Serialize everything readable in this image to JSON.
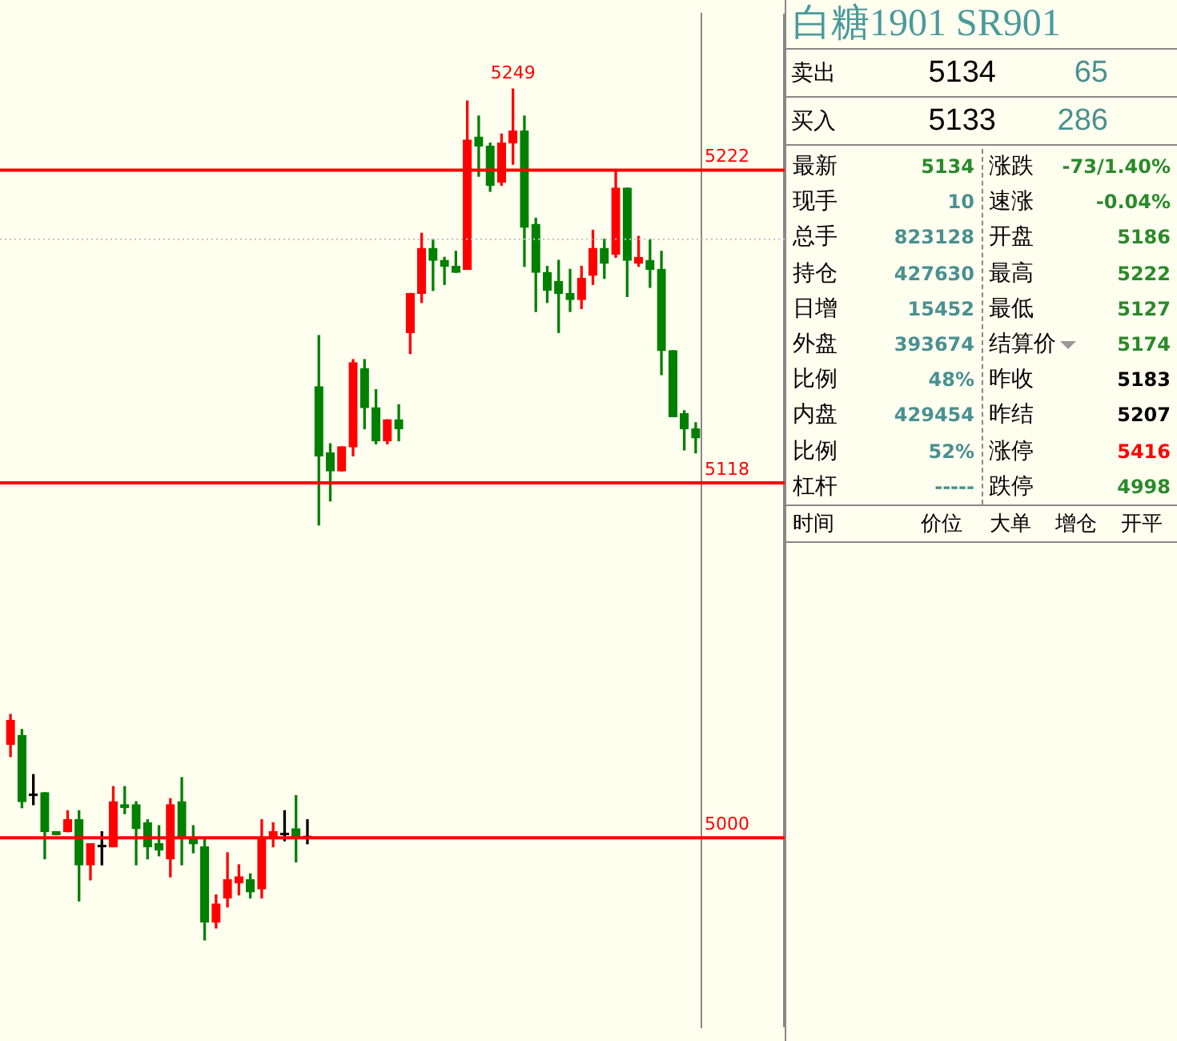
{
  "chart_data": [
    {
      "type": "candlestick",
      "categories": [
        null,
        null,
        null,
        null,
        null,
        null,
        null,
        null,
        null,
        null,
        null,
        null,
        null,
        null,
        null,
        null,
        null,
        null,
        null,
        null,
        null,
        null,
        null,
        null,
        null,
        null,
        null,
        null,
        null,
        null,
        null,
        null,
        null,
        null,
        null,
        null,
        null,
        null,
        null,
        null,
        null,
        null,
        null,
        null,
        null,
        null,
        null,
        null,
        null,
        null,
        null,
        null,
        null,
        null,
        null,
        null,
        null,
        null,
        null,
        null,
        null
      ],
      "ohlc": [
        [
          5031,
          5041,
          5027,
          5039
        ],
        [
          5034,
          5036,
          5010,
          5012
        ],
        [
          5014,
          5021,
          5011,
          5014
        ],
        [
          5015,
          5015,
          4993,
          5002
        ],
        [
          5002,
          5002,
          5001,
          5001
        ],
        [
          5002,
          5009,
          5002,
          5006
        ],
        [
          5006,
          5009,
          4979,
          4991
        ],
        [
          4991,
          4998,
          4986,
          4998
        ],
        [
          4997,
          5002,
          4991,
          4997
        ],
        [
          4997,
          5017,
          4997,
          5012
        ],
        [
          5011,
          5017,
          5008,
          5010
        ],
        [
          5011,
          5012,
          4991,
          5003
        ],
        [
          5005,
          5006,
          4993,
          4997
        ],
        [
          4998,
          5004,
          4994,
          4996
        ],
        [
          4993,
          5013,
          4987,
          5011
        ],
        [
          5012,
          5020,
          4991,
          5000
        ],
        [
          5000,
          5004,
          4995,
          4998
        ],
        [
          4997,
          5000,
          4966,
          4972
        ],
        [
          4972,
          4981,
          4970,
          4978
        ],
        [
          4980,
          4995,
          4977,
          4986
        ],
        [
          4985,
          4991,
          4981,
          4987
        ],
        [
          4986,
          4988,
          4980,
          4982
        ],
        [
          4983,
          5006,
          4980,
          5000
        ],
        [
          5000,
          5005,
          4997,
          5002
        ],
        [
          5001,
          5009,
          4999,
          5001
        ],
        [
          5003,
          5014,
          4992,
          5000
        ],
        [
          5000,
          5006,
          4998,
          5000
        ],
        [
          5150,
          5167,
          5104,
          5127
        ],
        [
          5128,
          5131,
          5112,
          5122
        ],
        [
          5122,
          5130,
          5122,
          5130
        ],
        [
          5130,
          5159,
          5127,
          5158
        ],
        [
          5156,
          5159,
          5136,
          5143
        ],
        [
          5143,
          5149,
          5131,
          5132
        ],
        [
          5132,
          5139,
          5131,
          5139
        ],
        [
          5139,
          5144,
          5132,
          5136
        ],
        [
          5168,
          5181,
          5161,
          5181
        ],
        [
          5181,
          5201,
          5178,
          5196
        ],
        [
          5196,
          5199,
          5182,
          5192
        ],
        [
          5192,
          5193,
          5184,
          5190
        ],
        [
          5190,
          5195,
          5188,
          5188
        ],
        [
          5189,
          5245,
          5189,
          5232
        ],
        [
          5233,
          5240,
          5220,
          5230
        ],
        [
          5230,
          5231,
          5215,
          5217
        ],
        [
          5218,
          5234,
          5217,
          5231
        ],
        [
          5231,
          5249,
          5224,
          5235
        ],
        [
          5235,
          5240,
          5190,
          5203
        ],
        [
          5204,
          5206,
          5175,
          5188
        ],
        [
          5188,
          5190,
          5178,
          5182
        ],
        [
          5185,
          5192,
          5168,
          5181
        ],
        [
          5181,
          5189,
          5175,
          5179
        ],
        [
          5179,
          5190,
          5176,
          5186
        ],
        [
          5187,
          5202,
          5184,
          5196
        ],
        [
          5196,
          5199,
          5186,
          5191
        ],
        [
          5194,
          5222,
          5193,
          5216
        ],
        [
          5216,
          5216,
          5180,
          5192
        ],
        [
          5191,
          5200,
          5190,
          5193
        ],
        [
          5192,
          5199,
          5183,
          5189
        ],
        [
          5189,
          5195,
          5154,
          5162
        ],
        [
          5162,
          5162,
          5140,
          5140
        ],
        [
          5141,
          5142,
          5129,
          5136
        ],
        [
          5136,
          5138,
          5128,
          5133
        ]
      ],
      "colors": [
        "#ff0000",
        "#008000",
        "#000000",
        "#008000",
        "#008000",
        "#ff0000",
        "#008000",
        "#ff0000",
        "#000000",
        "#ff0000",
        "#008000",
        "#008000",
        "#008000",
        "#008000",
        "#ff0000",
        "#008000",
        "#008000",
        "#008000",
        "#ff0000",
        "#ff0000",
        "#ff0000",
        "#008000",
        "#ff0000",
        "#ff0000",
        "#000000",
        "#008000",
        "#000000",
        "#008000",
        "#008000",
        "#ff0000",
        "#ff0000",
        "#008000",
        "#008000",
        "#ff0000",
        "#008000",
        "#ff0000",
        "#ff0000",
        "#008000",
        "#008000",
        "#008000",
        "#ff0000",
        "#008000",
        "#008000",
        "#ff0000",
        "#ff0000",
        "#008000",
        "#008000",
        "#008000",
        "#008000",
        "#008000",
        "#ff0000",
        "#ff0000",
        "#008000",
        "#ff0000",
        "#008000",
        "#ff0000",
        "#008000",
        "#008000",
        "#008000",
        "#008000",
        "#008000"
      ],
      "ylim": [
        4937,
        5274
      ],
      "yticks": [
        5000,
        5118,
        5222
      ],
      "tick_labels": "y",
      "grid": false,
      "legend": false,
      "ref_lines": [
        {
          "axis": "y",
          "value": 5222,
          "color": "#ff0000"
        },
        {
          "axis": "y",
          "value": 5118,
          "color": "#ff0000"
        },
        {
          "axis": "y",
          "value": 5000,
          "color": "#ff0000"
        },
        {
          "axis": "y",
          "value": 5199,
          "color": "#c0c0c0",
          "line_style": "dotted"
        }
      ],
      "annotations": [
        {
          "text": "5249",
          "y": 5249
        }
      ]
    },
    {
      "type": "other",
      "title": "白糖1901  SR901",
      "annotations": [
        "卖出",
        "5134",
        "65",
        "买入",
        "5133",
        "286",
        "最新",
        "5134",
        "涨跌",
        "-73/1.40%",
        "现手",
        "10",
        "速涨",
        "-0.04%",
        "总手",
        "823128",
        "开盘",
        "5186",
        "持仓",
        "427630",
        "最高",
        "5222",
        "日增",
        "15452",
        "最低",
        "5127",
        "外盘",
        "393674",
        "结算价",
        "5174",
        "比例",
        "48%",
        "昨收",
        "5183",
        "内盘",
        "429454",
        "昨结",
        "5207",
        "比例",
        "52%",
        "涨停",
        "5416",
        "杠杆",
        "-----",
        "跌停",
        "4998",
        "时间",
        "价位",
        "大单",
        "增仓",
        "开平"
      ],
      "colors": [
        "#000000",
        "#000000",
        "#4a9090",
        "#000000",
        "#000000",
        "#4a9090",
        "#000000",
        "#2a8a2a",
        "#000000",
        "#2a8a2a",
        "#000000",
        "#4a9090",
        "#000000",
        "#2a8a2a",
        "#000000",
        "#4a9090",
        "#000000",
        "#2a8a2a",
        "#000000",
        "#4a9090",
        "#000000",
        "#2a8a2a",
        "#000000",
        "#4a9090",
        "#000000",
        "#2a8a2a",
        "#000000",
        "#4a9090",
        "#000000",
        "#2a8a2a",
        "#000000",
        "#4a9090",
        "#000000",
        "#000000",
        "#000000",
        "#4a9090",
        "#000000",
        "#000000",
        "#000000",
        "#4a9090",
        "#000000",
        "#ff0000",
        "#000000",
        "#4a9090",
        "#000000",
        "#2a8a2a",
        "#000000",
        "#000000",
        "#000000",
        "#000000",
        "#000000"
      ]
    }
  ]
}
